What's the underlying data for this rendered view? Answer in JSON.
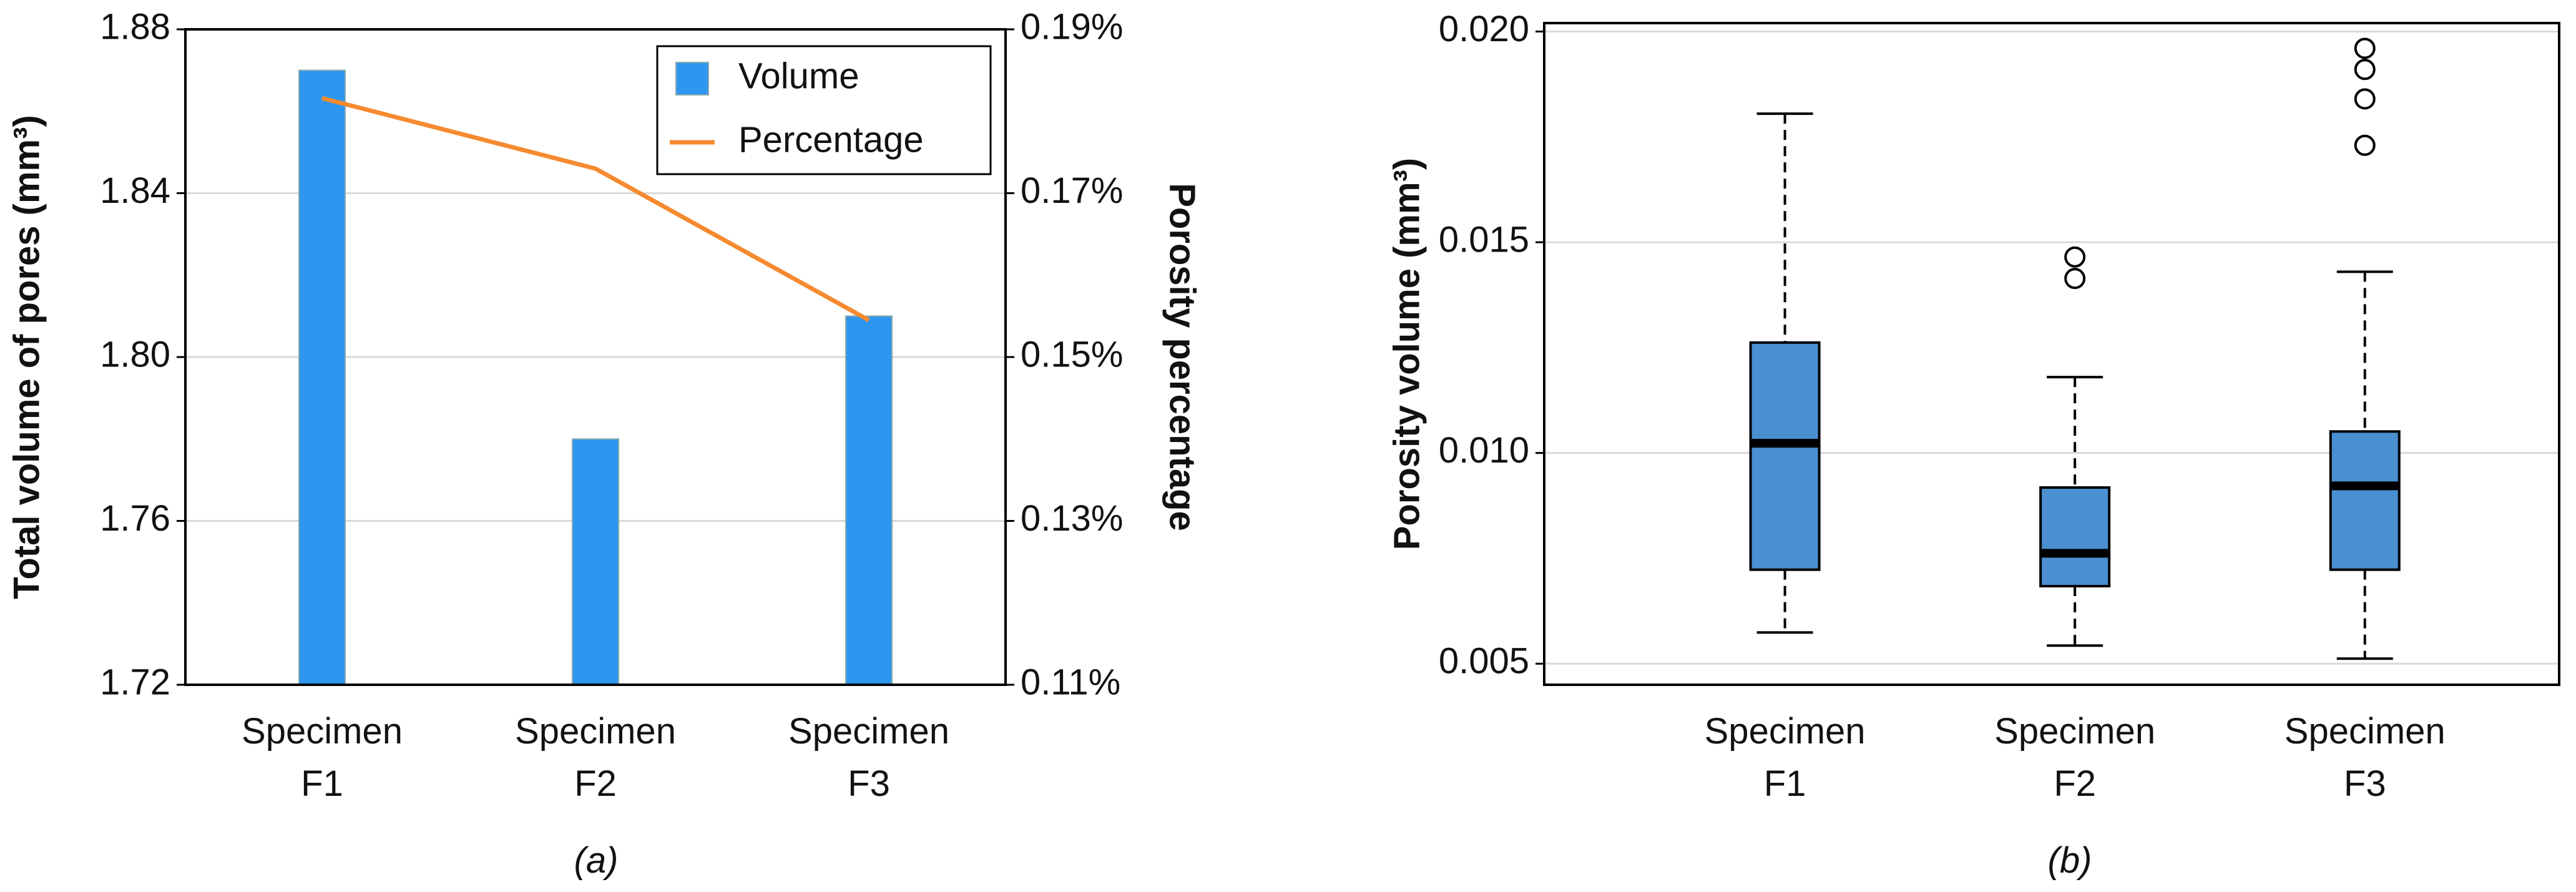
{
  "chart_data": [
    {
      "type": "bar",
      "caption": "(a)",
      "categories": [
        "Specimen\nF1",
        "Specimen\nF2",
        "Specimen\nF3"
      ],
      "y_label": "Total volume of pores (mm³)",
      "y2_label": "Porosity percentage",
      "ylim": [
        1.72,
        1.88
      ],
      "yticks": [
        1.72,
        1.76,
        {
          "value": 1.8,
          "label": "1.80"
        },
        1.84,
        1.88
      ],
      "y2lim": [
        0.11,
        0.19
      ],
      "y2ticks": [
        {
          "value": 0.11,
          "label": "0.11%"
        },
        {
          "value": 0.13,
          "label": "0.13%"
        },
        {
          "value": 0.15,
          "label": "0.15%"
        },
        {
          "value": 0.17,
          "label": "0.17%"
        },
        {
          "value": 0.19,
          "label": "0.19%"
        }
      ],
      "grid": true,
      "legend": "upper right",
      "series": [
        {
          "name": "Volume",
          "type": "bar",
          "color": "#2f96f0",
          "values": [
            1.87,
            1.78,
            1.81
          ]
        },
        {
          "name": "Percentage",
          "type": "line",
          "axis": "y2",
          "color": "#f58a2f",
          "values": [
            0.1816,
            0.173,
            0.1545
          ]
        }
      ]
    },
    {
      "type": "box",
      "caption": "(b)",
      "categories": [
        "Specimen\nF1",
        "Specimen\nF2",
        "Specimen\nF3"
      ],
      "y_label": "Porosity volume (mm³)",
      "ylim": [
        0.0045,
        0.0202
      ],
      "yticks": [
        0.005,
        {
          "value": 0.01,
          "label": "0.010"
        },
        0.015,
        {
          "value": 0.02,
          "label": "0.020"
        }
      ],
      "grid": true,
      "color": "#4a8fd0",
      "boxes": [
        {
          "whisker_low": 0.00574,
          "q1": 0.00723,
          "median": 0.01023,
          "q3": 0.01262,
          "whisker_high": 0.01805,
          "outliers": []
        },
        {
          "whisker_low": 0.00543,
          "q1": 0.00684,
          "median": 0.00762,
          "q3": 0.00918,
          "whisker_high": 0.0118,
          "outliers": [
            0.01465,
            0.01414
          ]
        },
        {
          "whisker_low": 0.00512,
          "q1": 0.00723,
          "median": 0.00922,
          "q3": 0.01051,
          "whisker_high": 0.0143,
          "outliers": [
            0.0196,
            0.0191,
            0.0184,
            0.0173
          ]
        }
      ]
    }
  ]
}
